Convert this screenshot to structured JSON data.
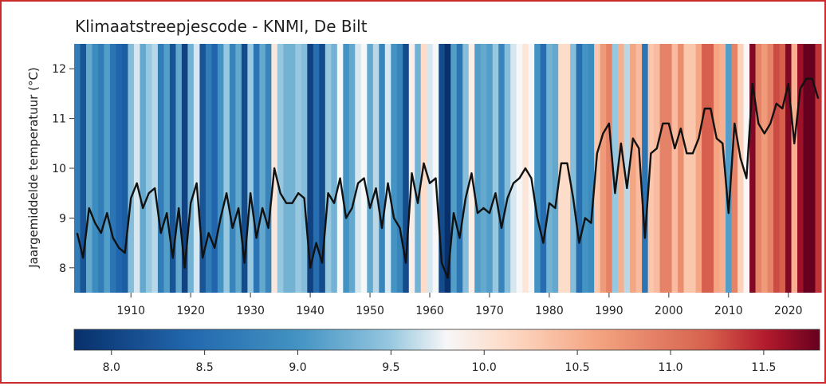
{
  "chart_data": {
    "type": "heatmap",
    "title": "Klimaatstreepjescode - KNMI, De Bilt",
    "xlabel": "",
    "ylabel": "Jaargemiddelde temperatuur (°C)",
    "xlim": [
      1901,
      2025
    ],
    "ylim": [
      7.5,
      12.5
    ],
    "yticks": [
      8,
      9,
      10,
      11,
      12
    ],
    "xticks": [
      1910,
      1920,
      1930,
      1940,
      1950,
      1960,
      1970,
      1980,
      1990,
      2000,
      2010,
      2020
    ],
    "colorbar": {
      "min": 7.8,
      "max": 11.8,
      "ticks": [
        8.0,
        8.5,
        9.0,
        9.5,
        10.0,
        10.5,
        11.0,
        11.5
      ],
      "tick_labels": [
        "8.0",
        "8.5",
        "9.0",
        "9.5",
        "10.0",
        "10.5",
        "11.0",
        "11.5"
      ]
    },
    "series": [
      {
        "x": [
          1901,
          1902,
          1903,
          1904,
          1905,
          1906,
          1907,
          1908,
          1909,
          1910,
          1911,
          1912,
          1913,
          1914,
          1915,
          1916,
          1917,
          1918,
          1919,
          1920,
          1921,
          1922,
          1923,
          1924,
          1925,
          1926,
          1927,
          1928,
          1929,
          1930,
          1931,
          1932,
          1933,
          1934,
          1935,
          1936,
          1937,
          1938,
          1939,
          1940,
          1941,
          1942,
          1943,
          1944,
          1945,
          1946,
          1947,
          1948,
          1949,
          1950,
          1951,
          1952,
          1953,
          1954,
          1955,
          1956,
          1957,
          1958,
          1959,
          1960,
          1961,
          1962,
          1963,
          1964,
          1965,
          1966,
          1967,
          1968,
          1969,
          1970,
          1971,
          1972,
          1973,
          1974,
          1975,
          1976,
          1977,
          1978,
          1979,
          1980,
          1981,
          1982,
          1983,
          1984,
          1985,
          1986,
          1987,
          1988,
          1989,
          1990,
          1991,
          1992,
          1993,
          1994,
          1995,
          1996,
          1997,
          1998,
          1999,
          2000,
          2001,
          2002,
          2003,
          2004,
          2005,
          2006,
          2007,
          2008,
          2009,
          2010,
          2011,
          2012,
          2013,
          2014,
          2015,
          2016,
          2017,
          2018,
          2019,
          2020,
          2021,
          2022,
          2023,
          2024,
          2025
        ],
        "y": [
          8.7,
          8.2,
          9.2,
          8.9,
          8.7,
          9.1,
          8.6,
          8.4,
          8.3,
          9.4,
          9.7,
          9.2,
          9.5,
          9.6,
          8.7,
          9.1,
          8.2,
          9.2,
          8.0,
          9.3,
          9.7,
          8.2,
          8.7,
          8.4,
          9.0,
          9.5,
          8.8,
          9.2,
          8.1,
          9.5,
          8.6,
          9.2,
          8.8,
          10.0,
          9.5,
          9.3,
          9.3,
          9.5,
          9.4,
          8.0,
          8.5,
          8.1,
          9.5,
          9.3,
          9.8,
          9.0,
          9.2,
          9.7,
          9.8,
          9.2,
          9.6,
          8.8,
          9.7,
          9.0,
          8.8,
          8.1,
          9.9,
          9.3,
          10.1,
          9.7,
          9.8,
          8.1,
          7.8,
          9.1,
          8.6,
          9.4,
          9.9,
          9.1,
          9.2,
          9.1,
          9.5,
          8.8,
          9.4,
          9.7,
          9.8,
          10.0,
          9.8,
          9.0,
          8.5,
          9.3,
          9.2,
          10.1,
          10.1,
          9.4,
          8.5,
          9.0,
          8.9,
          10.3,
          10.7,
          10.9,
          9.5,
          10.5,
          9.6,
          10.6,
          10.4,
          8.6,
          10.3,
          10.4,
          10.9,
          10.9,
          10.4,
          10.8,
          10.3,
          10.3,
          10.6,
          11.2,
          11.2,
          10.6,
          10.5,
          9.1,
          10.9,
          10.2,
          9.8,
          11.7,
          10.9,
          10.7,
          10.9,
          11.3,
          11.2,
          11.7,
          10.5,
          11.6,
          11.8,
          11.8,
          11.4
        ]
      }
    ],
    "colors": {
      "line": "#111111",
      "cold_end": "#08306b",
      "warm_end": "#67001f",
      "frame_border": "#cc2b2b"
    }
  }
}
